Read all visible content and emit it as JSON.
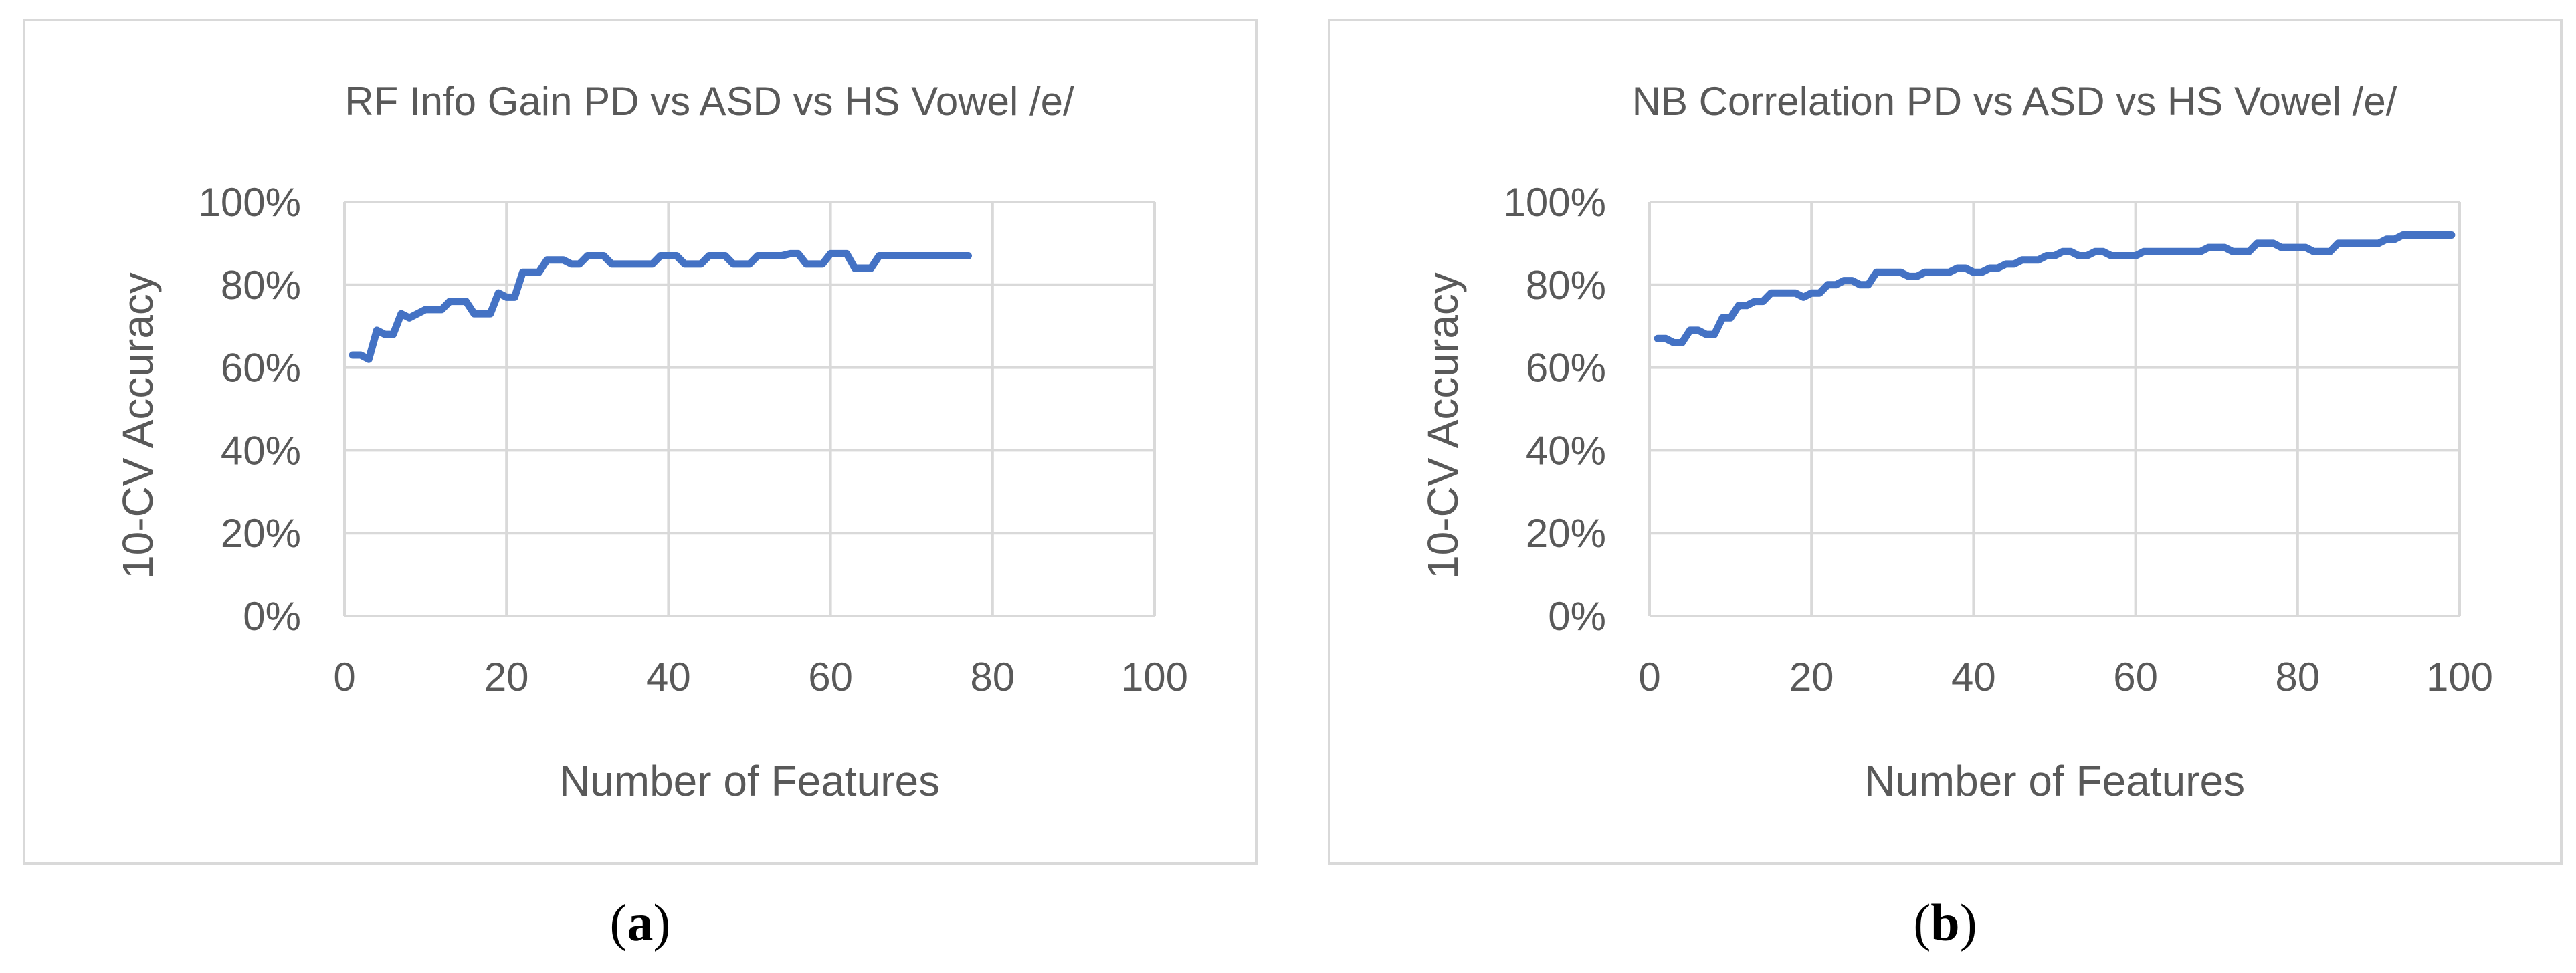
{
  "captions": [
    {
      "open": "(",
      "letter": "a",
      "close": ")"
    },
    {
      "open": "(",
      "letter": "b",
      "close": ")"
    }
  ],
  "chart_data": [
    {
      "type": "line",
      "title": "RF Info Gain PD vs ASD vs HS Vowel /e/",
      "xlabel": "Number of Features",
      "ylabel": "10-CV Accuracy",
      "xlim": [
        0,
        100
      ],
      "ylim": [
        0,
        1
      ],
      "xticks": [
        "0",
        "20",
        "40",
        "60",
        "80",
        "100"
      ],
      "yticks": [
        "0%",
        "20%",
        "40%",
        "60%",
        "80%",
        "100%"
      ],
      "grid": true,
      "line_color": "#4472c4",
      "series": [
        {
          "x": [
            1,
            2,
            3,
            4,
            5,
            6,
            7,
            8,
            9,
            10,
            11,
            12,
            13,
            14,
            15,
            16,
            17,
            18,
            19,
            20,
            21,
            22,
            23,
            24,
            25,
            26,
            27,
            28,
            29,
            30,
            31,
            32,
            33,
            34,
            35,
            36,
            37,
            38,
            39,
            40,
            41,
            42,
            43,
            44,
            45,
            46,
            47,
            48,
            49,
            50,
            51,
            52,
            53,
            54,
            55,
            56,
            57,
            58,
            59,
            60,
            61,
            62,
            63,
            64,
            65,
            66,
            67,
            68,
            69,
            70,
            71,
            72,
            73,
            74,
            75,
            76,
            77
          ],
          "y": [
            0.63,
            0.63,
            0.62,
            0.69,
            0.68,
            0.68,
            0.73,
            0.72,
            0.73,
            0.74,
            0.74,
            0.74,
            0.76,
            0.76,
            0.76,
            0.73,
            0.73,
            0.73,
            0.78,
            0.77,
            0.77,
            0.83,
            0.83,
            0.83,
            0.86,
            0.86,
            0.86,
            0.85,
            0.85,
            0.87,
            0.87,
            0.87,
            0.85,
            0.85,
            0.85,
            0.85,
            0.85,
            0.85,
            0.87,
            0.87,
            0.87,
            0.85,
            0.85,
            0.85,
            0.87,
            0.87,
            0.87,
            0.85,
            0.85,
            0.85,
            0.87,
            0.87,
            0.87,
            0.87,
            0.875,
            0.875,
            0.85,
            0.85,
            0.85,
            0.875,
            0.875,
            0.875,
            0.84,
            0.84,
            0.84,
            0.87,
            0.87,
            0.87,
            0.87,
            0.87,
            0.87,
            0.87,
            0.87,
            0.87,
            0.87,
            0.87,
            0.87
          ]
        }
      ]
    },
    {
      "type": "line",
      "title": "NB Correlation PD vs ASD vs HS Vowel /e/",
      "xlabel": "Number of Features",
      "ylabel": "10-CV Accuracy",
      "xlim": [
        0,
        100
      ],
      "ylim": [
        0,
        1
      ],
      "xticks": [
        "0",
        "20",
        "40",
        "60",
        "80",
        "100"
      ],
      "yticks": [
        "0%",
        "20%",
        "40%",
        "60%",
        "80%",
        "100%"
      ],
      "grid": true,
      "line_color": "#4472c4",
      "series": [
        {
          "x": [
            1,
            2,
            3,
            4,
            5,
            6,
            7,
            8,
            9,
            10,
            11,
            12,
            13,
            14,
            15,
            16,
            17,
            18,
            19,
            20,
            21,
            22,
            23,
            24,
            25,
            26,
            27,
            28,
            29,
            30,
            31,
            32,
            33,
            34,
            35,
            36,
            37,
            38,
            39,
            40,
            41,
            42,
            43,
            44,
            45,
            46,
            47,
            48,
            49,
            50,
            51,
            52,
            53,
            54,
            55,
            56,
            57,
            58,
            59,
            60,
            61,
            62,
            63,
            64,
            65,
            66,
            67,
            68,
            69,
            70,
            71,
            72,
            73,
            74,
            75,
            76,
            77,
            78,
            79,
            80,
            81,
            82,
            83,
            84,
            85,
            86,
            87,
            88,
            89,
            90,
            91,
            92,
            93,
            94,
            95,
            96,
            97,
            98,
            99
          ],
          "y": [
            0.67,
            0.67,
            0.66,
            0.66,
            0.69,
            0.69,
            0.68,
            0.68,
            0.72,
            0.72,
            0.75,
            0.75,
            0.76,
            0.76,
            0.78,
            0.78,
            0.78,
            0.78,
            0.77,
            0.78,
            0.78,
            0.8,
            0.8,
            0.81,
            0.81,
            0.8,
            0.8,
            0.83,
            0.83,
            0.83,
            0.83,
            0.82,
            0.82,
            0.83,
            0.83,
            0.83,
            0.83,
            0.84,
            0.84,
            0.83,
            0.83,
            0.84,
            0.84,
            0.85,
            0.85,
            0.86,
            0.86,
            0.86,
            0.87,
            0.87,
            0.88,
            0.88,
            0.87,
            0.87,
            0.88,
            0.88,
            0.87,
            0.87,
            0.87,
            0.87,
            0.88,
            0.88,
            0.88,
            0.88,
            0.88,
            0.88,
            0.88,
            0.88,
            0.89,
            0.89,
            0.89,
            0.88,
            0.88,
            0.88,
            0.9,
            0.9,
            0.9,
            0.89,
            0.89,
            0.89,
            0.89,
            0.88,
            0.88,
            0.88,
            0.9,
            0.9,
            0.9,
            0.9,
            0.9,
            0.9,
            0.91,
            0.91,
            0.92,
            0.92,
            0.92,
            0.92,
            0.92,
            0.92,
            0.92
          ]
        }
      ]
    }
  ]
}
